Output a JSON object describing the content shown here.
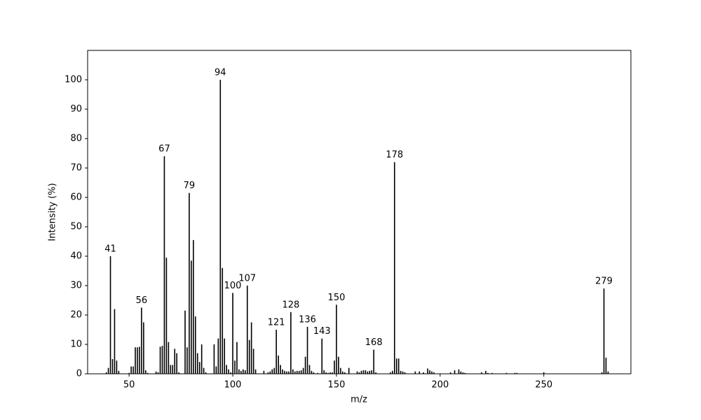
{
  "chart_data": {
    "type": "stick",
    "xlabel": "m/z",
    "ylabel": "Intensity (%)",
    "color": "#000000",
    "xlim": [
      30,
      292
    ],
    "ylim": [
      0,
      110
    ],
    "xticks": [
      50,
      100,
      150,
      200,
      250
    ],
    "yticks": [
      0,
      10,
      20,
      30,
      40,
      50,
      60,
      70,
      80,
      90,
      100
    ],
    "peak_labels": [
      41,
      56,
      67,
      79,
      94,
      100,
      107,
      121,
      128,
      136,
      143,
      150,
      168,
      178,
      279
    ],
    "x": [
      39,
      40,
      41,
      42,
      43,
      44,
      45,
      50,
      51,
      52,
      53,
      54,
      55,
      56,
      57,
      58,
      59,
      63,
      64,
      65,
      66,
      67,
      68,
      69,
      70,
      71,
      72,
      73,
      74,
      77,
      78,
      79,
      80,
      81,
      82,
      83,
      84,
      85,
      86,
      87,
      91,
      92,
      93,
      94,
      95,
      96,
      97,
      98,
      99,
      100,
      101,
      102,
      103,
      104,
      105,
      106,
      107,
      108,
      109,
      110,
      111,
      115,
      117,
      118,
      119,
      120,
      121,
      122,
      123,
      124,
      125,
      126,
      127,
      128,
      129,
      130,
      131,
      132,
      133,
      134,
      135,
      136,
      137,
      138,
      139,
      141,
      143,
      144,
      145,
      146,
      147,
      148,
      149,
      150,
      151,
      152,
      153,
      154,
      156,
      160,
      161,
      162,
      163,
      164,
      165,
      166,
      167,
      168,
      169,
      176,
      177,
      178,
      179,
      180,
      181,
      182,
      183,
      188,
      190,
      192,
      194,
      195,
      196,
      197,
      205,
      207,
      209,
      210,
      211,
      212,
      220,
      222,
      223,
      225,
      232,
      236,
      237,
      250,
      278,
      279,
      280,
      281
    ],
    "values": [
      0.5,
      2,
      40,
      5,
      22,
      4.5,
      1,
      0.3,
      2.5,
      2.5,
      9,
      9,
      9.2,
      22.5,
      17.5,
      1.2,
      0.3,
      0.8,
      0.5,
      9.2,
      9.5,
      74,
      39.5,
      10.8,
      3,
      3,
      8.5,
      7,
      0.5,
      21.5,
      9,
      61.5,
      38.5,
      45.5,
      19.5,
      7,
      4,
      10,
      2,
      0.5,
      10,
      2.5,
      12,
      100,
      36,
      12,
      3,
      1.5,
      0.5,
      27.5,
      4.5,
      10.8,
      1.5,
      1,
      1.5,
      1.2,
      30,
      11.5,
      17.5,
      8.5,
      1.5,
      1,
      0.5,
      0.8,
      1.5,
      2,
      15,
      6.2,
      3,
      1.5,
      1,
      0.8,
      0.8,
      21,
      1.5,
      0.8,
      1,
      1,
      1.2,
      2,
      5.8,
      16,
      3,
      1,
      0.5,
      0.3,
      12,
      1.2,
      0.5,
      0.3,
      0.5,
      0.5,
      4.5,
      23.5,
      5.8,
      2,
      0.8,
      0.5,
      2,
      0.8,
      0.5,
      1,
      1.2,
      1.2,
      0.8,
      1,
      1.2,
      8.2,
      0.5,
      0.5,
      1,
      72,
      5.2,
      5.2,
      1,
      0.8,
      0.5,
      0.8,
      0.8,
      0.5,
      1.8,
      1.2,
      0.8,
      0.5,
      0.5,
      1.2,
      1.5,
      0.8,
      0.5,
      0.3,
      0.5,
      1,
      0.3,
      0.3,
      0.3,
      0.3,
      0.3,
      0.5,
      0.5,
      29,
      5.5,
      0.8
    ]
  }
}
